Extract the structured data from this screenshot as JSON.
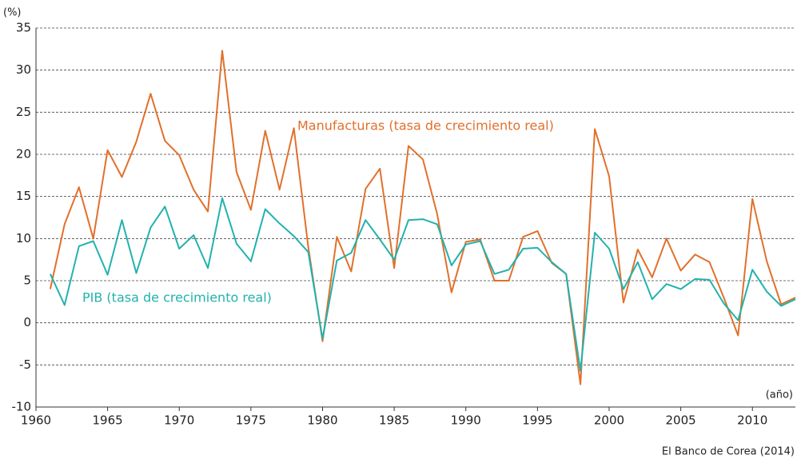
{
  "chart_data": {
    "type": "line",
    "y_unit": "(%)",
    "x_unit": "(año)",
    "source": "El Banco de Corea (2014)",
    "x": [
      1961,
      1962,
      1963,
      1964,
      1965,
      1966,
      1967,
      1968,
      1969,
      1970,
      1971,
      1972,
      1973,
      1974,
      1975,
      1976,
      1977,
      1978,
      1979,
      1980,
      1981,
      1982,
      1983,
      1984,
      1985,
      1986,
      1987,
      1988,
      1989,
      1990,
      1991,
      1992,
      1993,
      1994,
      1995,
      1996,
      1997,
      1998,
      1999,
      2000,
      2001,
      2002,
      2003,
      2004,
      2005,
      2006,
      2007,
      2008,
      2009,
      2010,
      2011,
      2012,
      2013
    ],
    "series": [
      {
        "name": "Manufacturas (tasa de crecimiento real)",
        "color": "#e2702c",
        "values": [
          4,
          11.7,
          16.1,
          10,
          20.5,
          17.3,
          21.5,
          27.2,
          21.6,
          19.9,
          15.8,
          13.2,
          32.3,
          17.9,
          13.4,
          22.8,
          15.8,
          23.1,
          9,
          -2.2,
          10.2,
          6.1,
          15.9,
          18.3,
          6.5,
          21,
          19.4,
          12.9,
          3.6,
          9.6,
          9.9,
          5,
          5,
          10.2,
          10.9,
          7.1,
          5.8,
          -7.3,
          23,
          17.4,
          2.4,
          8.7,
          5.4,
          10,
          6.2,
          8.1,
          7.2,
          3,
          -1.5,
          14.7,
          7.3,
          2.2,
          3
        ]
      },
      {
        "name": "PIB (tasa de crecimiento real)",
        "color": "#22b2ae",
        "values": [
          5.8,
          2.1,
          9.1,
          9.7,
          5.7,
          12.2,
          5.9,
          11.3,
          13.8,
          8.8,
          10.4,
          6.5,
          14.8,
          9.4,
          7.3,
          13.5,
          11.8,
          10.3,
          8.4,
          -1.9,
          7.4,
          8.3,
          12.2,
          9.9,
          7.5,
          12.2,
          12.3,
          11.7,
          6.8,
          9.3,
          9.7,
          5.8,
          6.3,
          8.8,
          8.9,
          7.2,
          5.8,
          -5.7,
          10.7,
          8.8,
          4,
          7.2,
          2.8,
          4.6,
          4,
          5.2,
          5.1,
          2.3,
          0.3,
          6.3,
          3.7,
          2,
          2.8
        ]
      }
    ],
    "xlim": [
      1960,
      2013
    ],
    "xticks": [
      1960,
      1965,
      1970,
      1975,
      1980,
      1985,
      1990,
      1995,
      2000,
      2005,
      2010
    ],
    "ylim": [
      -10,
      35
    ],
    "yticks": [
      -10,
      -5,
      0,
      5,
      10,
      15,
      20,
      25,
      30,
      35
    ],
    "grid": true
  }
}
